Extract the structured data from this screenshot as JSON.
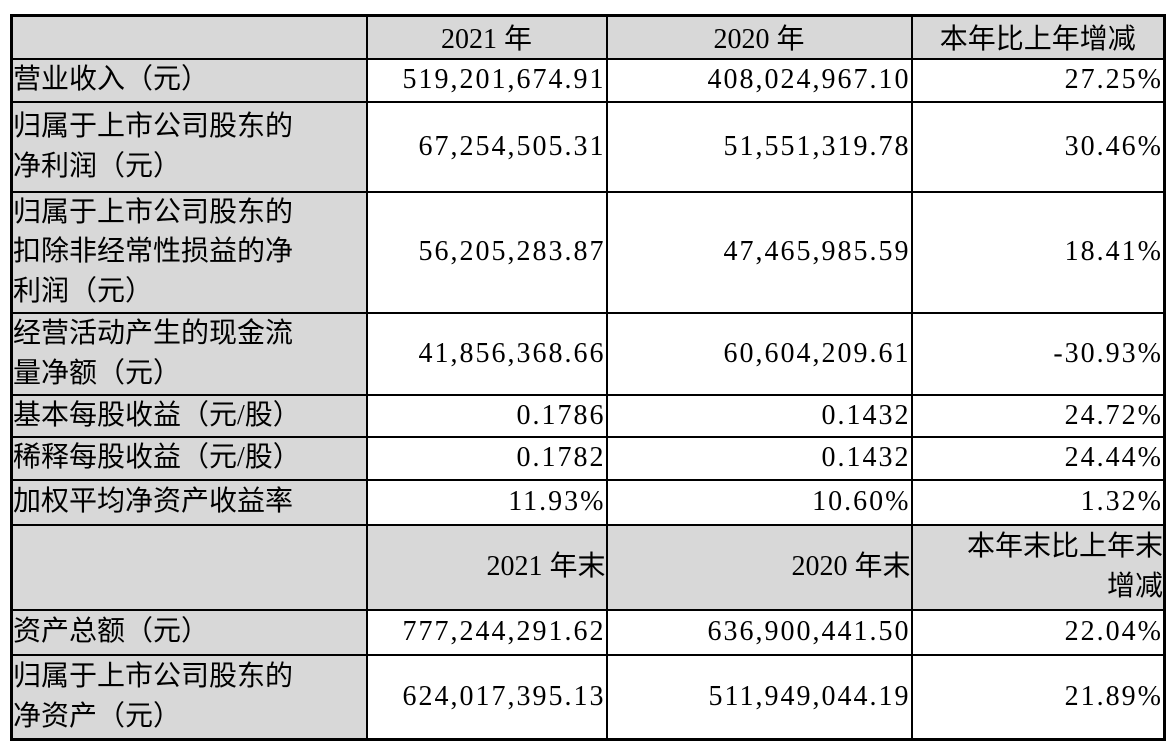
{
  "colors": {
    "table_border": "#000000",
    "header_cell_bg": "#d8d8d8",
    "label_cell_bg": "#d8d8d8",
    "value_cell_bg": "#ffffff"
  },
  "table": {
    "annual": {
      "header": {
        "corner": "",
        "y2021": "2021 年",
        "y2020": "2020 年",
        "change": "本年比上年增减"
      },
      "rows": [
        {
          "label": "营业收入（元）",
          "y2021": "519,201,674.91",
          "y2020": "408,024,967.10",
          "change": "27.25%"
        },
        {
          "label": "归属于上市公司股东的\n净利润（元）",
          "y2021": "67,254,505.31",
          "y2020": "51,551,319.78",
          "change": "30.46%"
        },
        {
          "label": "归属于上市公司股东的\n扣除非经常性损益的净\n利润（元）",
          "y2021": "56,205,283.87",
          "y2020": "47,465,985.59",
          "change": "18.41%"
        },
        {
          "label": "经营活动产生的现金流\n量净额（元）",
          "y2021": "41,856,368.66",
          "y2020": "60,604,209.61",
          "change": "-30.93%"
        },
        {
          "label": "基本每股收益（元/股）",
          "y2021": "0.1786",
          "y2020": "0.1432",
          "change": "24.72%"
        },
        {
          "label": "稀释每股收益（元/股）",
          "y2021": "0.1782",
          "y2020": "0.1432",
          "change": "24.44%"
        },
        {
          "label": "加权平均净资产收益率",
          "y2021": "11.93%",
          "y2020": "10.60%",
          "change": "1.32%"
        }
      ]
    },
    "year_end": {
      "header": {
        "corner": "",
        "y2021": "2021 年末",
        "y2020": "2020 年末",
        "change": "本年末比上年末\n增减"
      },
      "rows": [
        {
          "label": "资产总额（元）",
          "y2021": "777,244,291.62",
          "y2020": "636,900,441.50",
          "change": "22.04%"
        },
        {
          "label": "归属于上市公司股东的\n净资产（元）",
          "y2021": "624,017,395.13",
          "y2020": "511,949,044.19",
          "change": "21.89%"
        }
      ]
    }
  }
}
